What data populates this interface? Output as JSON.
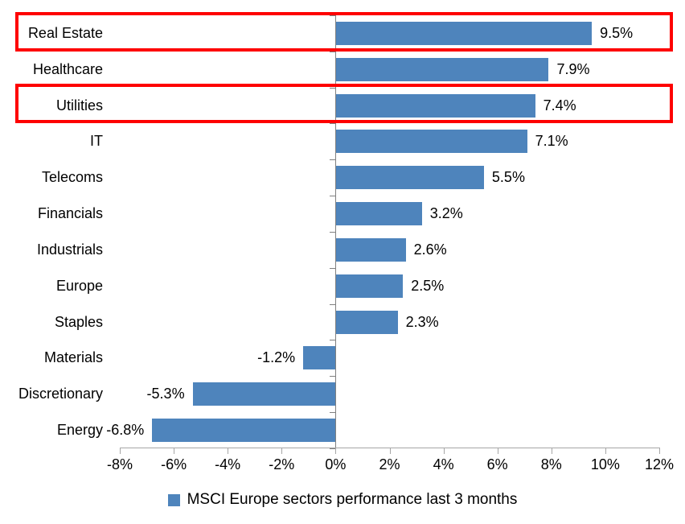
{
  "chart_data": {
    "type": "bar",
    "orientation": "horizontal",
    "title": "",
    "categories": [
      "Real Estate",
      "Healthcare",
      "Utilities",
      "IT",
      "Telecoms",
      "Financials",
      "Industrials",
      "Europe",
      "Staples",
      "Materials",
      "Discretionary",
      "Energy"
    ],
    "values": [
      9.5,
      7.9,
      7.4,
      7.1,
      5.5,
      3.2,
      2.6,
      2.5,
      2.3,
      -1.2,
      -5.3,
      -6.8
    ],
    "data_labels": [
      "9.5%",
      "7.9%",
      "7.4%",
      "7.1%",
      "5.5%",
      "3.2%",
      "2.6%",
      "2.5%",
      "2.3%",
      "-1.2%",
      "-5.3%",
      "-6.8%"
    ],
    "highlighted_categories": [
      "Real Estate",
      "Utilities"
    ],
    "x_axis": {
      "min": -8,
      "max": 12,
      "step": 2,
      "tick_labels": [
        "-8%",
        "-6%",
        "-4%",
        "-2%",
        "0%",
        "2%",
        "4%",
        "6%",
        "8%",
        "10%",
        "12%"
      ]
    },
    "grid": false,
    "legend": {
      "position": "bottom",
      "label": "MSCI Europe sectors performance last 3 months"
    },
    "colors": {
      "bar": "#4e84bc",
      "highlight_box": "#fe0000",
      "value_axis": "#a6a6a6",
      "category_axis": "#808080",
      "text": "#000000"
    }
  }
}
